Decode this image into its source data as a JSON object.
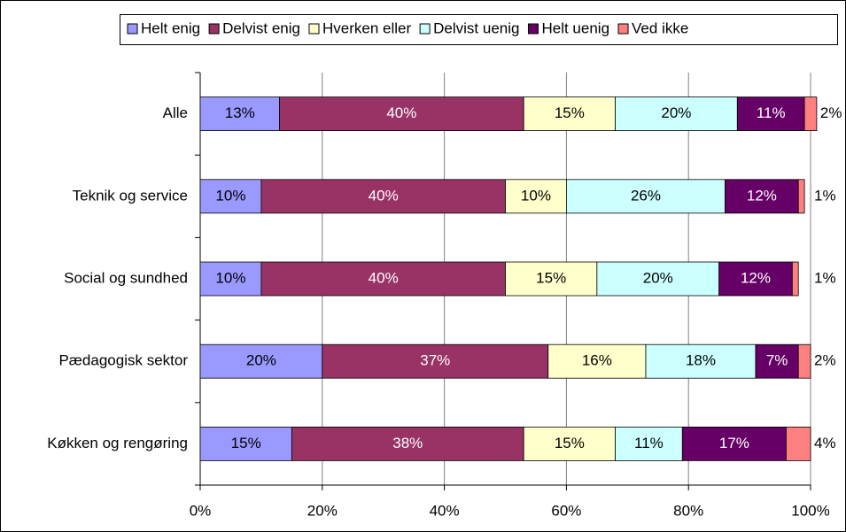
{
  "chart_data": {
    "type": "bar",
    "orientation": "horizontal",
    "stacked": true,
    "categories": [
      "Alle",
      "Teknik og service",
      "Social og sundhed",
      "Pædagogisk sektor",
      "Køkken og rengøring"
    ],
    "series": [
      {
        "name": "Helt enig",
        "color": "#9999ff",
        "values": [
          13,
          10,
          10,
          20,
          15
        ],
        "value_labels": [
          "13%",
          "10%",
          "10%",
          "20%",
          "15%"
        ]
      },
      {
        "name": "Delvist enig",
        "color": "#993366",
        "values": [
          40,
          40,
          40,
          37,
          38
        ],
        "value_labels": [
          "40%",
          "40%",
          "40%",
          "37%",
          "38%"
        ]
      },
      {
        "name": "Hverken eller",
        "color": "#ffffcc",
        "values": [
          15,
          10,
          15,
          16,
          15
        ],
        "value_labels": [
          "15%",
          "10%",
          "15%",
          "16%",
          "15%"
        ]
      },
      {
        "name": "Delvist uenig",
        "color": "#ccffff",
        "values": [
          20,
          26,
          20,
          18,
          11
        ],
        "value_labels": [
          "20%",
          "26%",
          "20%",
          "18%",
          "11%"
        ]
      },
      {
        "name": "Helt uenig",
        "color": "#660066",
        "values": [
          11,
          12,
          12,
          7,
          17
        ],
        "value_labels": [
          "11%",
          "12%",
          "12%",
          "7%",
          "17%"
        ]
      },
      {
        "name": "Ved ikke",
        "color": "#ff8080",
        "values": [
          2,
          1,
          1,
          2,
          4
        ],
        "value_labels": [
          "2%",
          "1%",
          "1%",
          "2%",
          "4%"
        ]
      }
    ],
    "xlim": [
      0,
      100
    ],
    "xticks": [
      {
        "value": 0,
        "label": "0%"
      },
      {
        "value": 20,
        "label": "20%"
      },
      {
        "value": 40,
        "label": "40%"
      },
      {
        "value": 60,
        "label": "60%"
      },
      {
        "value": 80,
        "label": "80%"
      },
      {
        "value": 100,
        "label": "100%"
      }
    ],
    "grid": true,
    "legend": "top"
  }
}
